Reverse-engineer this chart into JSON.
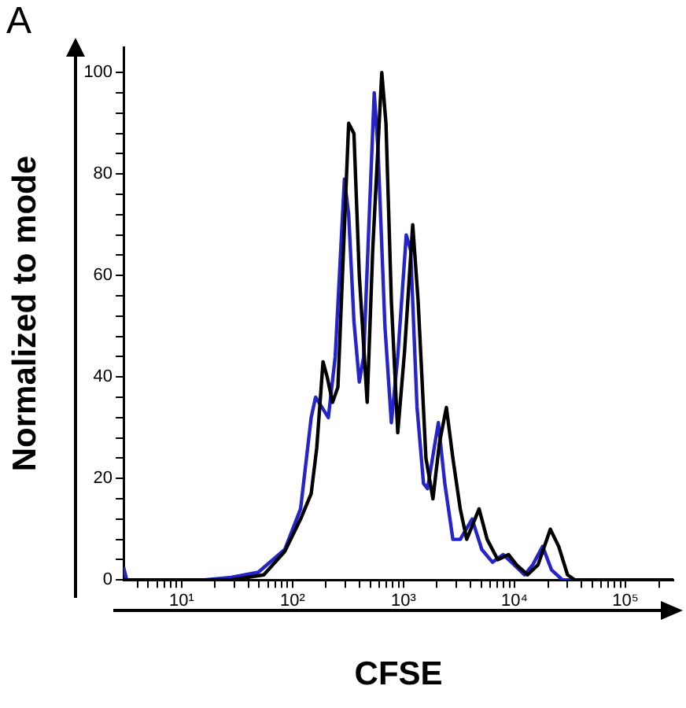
{
  "chart_data": {
    "type": "line",
    "xlabel": "CFSE",
    "ylabel": "Normalized to mode",
    "annotations": [
      "A"
    ],
    "log": "x",
    "grid": false,
    "legend": false,
    "marker": "none",
    "line_style": "solid",
    "xlim": [
      3,
      270000
    ],
    "xticks": [
      {
        "value": 4,
        "label": null
      },
      {
        "value": 5,
        "label": null
      },
      {
        "value": 6,
        "label": null
      },
      {
        "value": 7,
        "label": null
      },
      {
        "value": 8,
        "label": null
      },
      {
        "value": 9,
        "label": null
      },
      {
        "value": 10,
        "label": "10¹"
      },
      {
        "value": 20,
        "label": null
      },
      {
        "value": 30,
        "label": null
      },
      {
        "value": 40,
        "label": null
      },
      {
        "value": 50,
        "label": null
      },
      {
        "value": 60,
        "label": null
      },
      {
        "value": 70,
        "label": null
      },
      {
        "value": 80,
        "label": null
      },
      {
        "value": 90,
        "label": null
      },
      {
        "value": 100,
        "label": "10²"
      },
      {
        "value": 200,
        "label": null
      },
      {
        "value": 300,
        "label": null
      },
      {
        "value": 400,
        "label": null
      },
      {
        "value": 500,
        "label": null
      },
      {
        "value": 600,
        "label": null
      },
      {
        "value": 700,
        "label": null
      },
      {
        "value": 800,
        "label": null
      },
      {
        "value": 900,
        "label": null
      },
      {
        "value": 1000,
        "label": "10³"
      },
      {
        "value": 2000,
        "label": null
      },
      {
        "value": 3000,
        "label": null
      },
      {
        "value": 4000,
        "label": null
      },
      {
        "value": 5000,
        "label": null
      },
      {
        "value": 6000,
        "label": null
      },
      {
        "value": 7000,
        "label": null
      },
      {
        "value": 8000,
        "label": null
      },
      {
        "value": 9000,
        "label": null
      },
      {
        "value": 10000,
        "label": "10⁴"
      },
      {
        "value": 20000,
        "label": null
      },
      {
        "value": 30000,
        "label": null
      },
      {
        "value": 40000,
        "label": null
      },
      {
        "value": 50000,
        "label": null
      },
      {
        "value": 60000,
        "label": null
      },
      {
        "value": 70000,
        "label": null
      },
      {
        "value": 80000,
        "label": null
      },
      {
        "value": 90000,
        "label": null
      },
      {
        "value": 100000,
        "label": "10⁵"
      },
      {
        "value": 200000,
        "label": null
      }
    ],
    "ylim": [
      0,
      105
    ],
    "yticks": [
      0,
      {
        "value": 4,
        "label": null
      },
      {
        "value": 8,
        "label": null
      },
      {
        "value": 12,
        "label": null
      },
      {
        "value": 16,
        "label": null
      },
      20,
      {
        "value": 24,
        "label": null
      },
      {
        "value": 28,
        "label": null
      },
      {
        "value": 32,
        "label": null
      },
      {
        "value": 36,
        "label": null
      },
      40,
      {
        "value": 44,
        "label": null
      },
      {
        "value": 48,
        "label": null
      },
      {
        "value": 52,
        "label": null
      },
      {
        "value": 56,
        "label": null
      },
      60,
      {
        "value": 64,
        "label": null
      },
      {
        "value": 68,
        "label": null
      },
      {
        "value": 72,
        "label": null
      },
      {
        "value": 76,
        "label": null
      },
      80,
      {
        "value": 84,
        "label": null
      },
      {
        "value": 88,
        "label": null
      },
      {
        "value": 92,
        "label": null
      },
      {
        "value": 96,
        "label": null
      },
      100
    ],
    "series": [
      {
        "color": "#000000",
        "x": [
          3,
          28,
          55,
          85,
          118,
          147,
          165,
          188,
          205,
          229,
          256,
          320,
          357,
          399,
          470,
          527,
          636,
          694,
          776,
          886,
          1020,
          1209,
          1352,
          1590,
          1839,
          2104,
          2432,
          2781,
          3240,
          3705,
          4790,
          5662,
          7061,
          8822,
          10400,
          13100,
          16300,
          21000,
          25000,
          30000,
          35000,
          270000
        ],
        "values": [
          0,
          0,
          1,
          5.6,
          12,
          17,
          26,
          43,
          40,
          35,
          38,
          90,
          88,
          60,
          35,
          65,
          100,
          90,
          55,
          29,
          45,
          70,
          55,
          24,
          16,
          27,
          34,
          24,
          14,
          8,
          14,
          8,
          4,
          5,
          3,
          1,
          3,
          10,
          6.6,
          1,
          0,
          0
        ]
      },
      {
        "color": "#2424c8",
        "x": [
          3,
          3.2,
          16,
          28,
          49,
          85,
          118,
          147,
          161,
          184,
          210,
          242,
          293,
          320,
          357,
          399,
          437,
          487,
          544,
          588,
          679,
          776,
          886,
          1057,
          1157,
          1322,
          1512,
          1644,
          2057,
          2352,
          2781,
          3240,
          4143,
          5067,
          6325,
          7893,
          9900,
          12300,
          14600,
          17900,
          21500,
          27000,
          270000
        ],
        "values": [
          2.5,
          0,
          0,
          0.5,
          1.5,
          6,
          14,
          32,
          36,
          34,
          32,
          44,
          79,
          72,
          51,
          39,
          44,
          70,
          96,
          85,
          50,
          31,
          44,
          68,
          65,
          34,
          19,
          18,
          31,
          19,
          8,
          8,
          12,
          6,
          3.5,
          5,
          3,
          1,
          3,
          6.6,
          2,
          0,
          0
        ]
      }
    ]
  }
}
